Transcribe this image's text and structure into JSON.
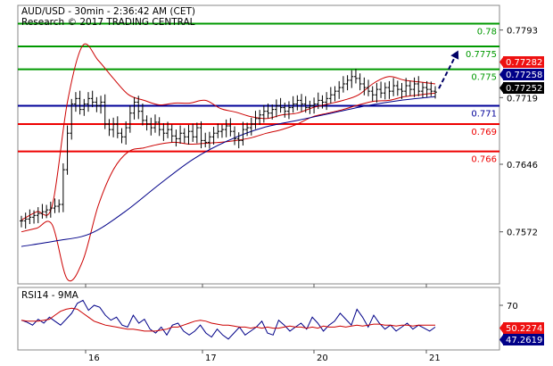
{
  "header": {
    "line1": "AUD/USD - 30min - 2:36:42 AM (CET)",
    "line2": "Research © 2017 TRADING CENTRAL"
  },
  "colors": {
    "resistance": "#009900",
    "support": "#ee0000",
    "pivot": "#000099",
    "bollinger": "#cc0000",
    "ma": "#000088",
    "price": "#000000",
    "rsi": "#000088",
    "rsi_ma": "#cc0000",
    "arrow": "#000066",
    "badge_red": "#ee1111",
    "badge_blue": "#000088"
  },
  "chart_data": [
    {
      "type": "line",
      "subtype": "ohlc",
      "ylim": [
        0.7515,
        0.782
      ],
      "y_ticks": [
        "0.7793",
        "0.7719",
        "0.7646",
        "0.7572"
      ],
      "x_ticks": [
        "16",
        "17",
        "20",
        "21"
      ],
      "levels": [
        {
          "value": 0.78,
          "label": "0.78",
          "kind": "resistance"
        },
        {
          "value": 0.7775,
          "label": "0.7775",
          "kind": "resistance"
        },
        {
          "value": 0.775,
          "label": "0.775",
          "kind": "resistance"
        },
        {
          "value": 0.771,
          "label": "0.771",
          "kind": "pivot"
        },
        {
          "value": 0.769,
          "label": "0.769",
          "kind": "support"
        },
        {
          "value": 0.766,
          "label": "0.766",
          "kind": "support"
        }
      ],
      "badges": [
        {
          "label": "0.77282",
          "value": 0.77282,
          "color": "red"
        },
        {
          "label": "0.77258",
          "value": 0.77258,
          "color": "blue"
        },
        {
          "label": "0.77252",
          "value": 0.77252,
          "color": "black"
        }
      ],
      "series_close": [
        0.7584,
        0.7586,
        0.7588,
        0.759,
        0.7592,
        0.7594,
        0.7596,
        0.7598,
        0.76,
        0.7602,
        0.764,
        0.768,
        0.7712,
        0.7718,
        0.7706,
        0.7712,
        0.7718,
        0.7714,
        0.771,
        0.7714,
        0.769,
        0.7684,
        0.769,
        0.768,
        0.7676,
        0.7686,
        0.7702,
        0.7714,
        0.7704,
        0.7694,
        0.769,
        0.7686,
        0.7692,
        0.7684,
        0.768,
        0.7684,
        0.7677,
        0.7674,
        0.768,
        0.7676,
        0.7682,
        0.7676,
        0.7686,
        0.7672,
        0.767,
        0.7676,
        0.768,
        0.7682,
        0.7684,
        0.7688,
        0.7682,
        0.7674,
        0.7672,
        0.7684,
        0.7686,
        0.769,
        0.7696,
        0.77,
        0.7704,
        0.7702,
        0.7706,
        0.771,
        0.7708,
        0.7704,
        0.7708,
        0.7712,
        0.7716,
        0.7712,
        0.7708,
        0.771,
        0.7712,
        0.7716,
        0.7714,
        0.7718,
        0.7722,
        0.7726,
        0.773,
        0.7734,
        0.7738,
        0.7742,
        0.774,
        0.7734,
        0.773,
        0.7726,
        0.7722,
        0.7728,
        0.7724,
        0.773,
        0.7726,
        0.7732,
        0.7728,
        0.7726,
        0.7732,
        0.7728,
        0.7734,
        0.7726,
        0.773,
        0.7728,
        0.7726,
        0.7725
      ],
      "ma_values": [
        0.7556,
        0.7562,
        0.757,
        0.7594,
        0.7624,
        0.7652,
        0.7672,
        0.7686,
        0.7694,
        0.7702,
        0.771,
        0.7716,
        0.772
      ],
      "boll_upper": [
        0.7585,
        0.7594,
        0.76,
        0.7714,
        0.7776,
        0.776,
        0.774,
        0.7722,
        0.7716,
        0.7711,
        0.7713,
        0.7713,
        0.7716,
        0.7707,
        0.7703,
        0.7698,
        0.7696,
        0.77,
        0.7702,
        0.7708,
        0.7712,
        0.7716,
        0.7722,
        0.7735,
        0.7742,
        0.7738,
        0.7736,
        0.7734
      ],
      "boll_lower": [
        0.7572,
        0.7576,
        0.758,
        0.752,
        0.754,
        0.76,
        0.764,
        0.766,
        0.7664,
        0.7668,
        0.767,
        0.7668,
        0.7669,
        0.767,
        0.7672,
        0.7675,
        0.768,
        0.7684,
        0.769,
        0.7698,
        0.7702,
        0.7706,
        0.7711,
        0.7715,
        0.7716,
        0.772,
        0.7722,
        0.7724
      ]
    },
    {
      "type": "line",
      "title": "RSI14 - 9MA",
      "ylim": [
        25,
        88
      ],
      "y_ticks": [
        "70"
      ],
      "x_ticks": [
        "16",
        "17",
        "20",
        "21"
      ],
      "badges": [
        {
          "label": "50.2274",
          "value": 50.2274,
          "color": "red"
        },
        {
          "label": "47.2619",
          "value": 47.2619,
          "color": "blue"
        }
      ],
      "series": [
        {
          "key": "rsi",
          "values": [
            55,
            53,
            50,
            56,
            52,
            58,
            54,
            50,
            56,
            62,
            72,
            75,
            65,
            70,
            68,
            60,
            55,
            58,
            50,
            48,
            60,
            52,
            56,
            46,
            42,
            48,
            40,
            50,
            52,
            44,
            40,
            44,
            50,
            42,
            38,
            46,
            40,
            36,
            42,
            48,
            40,
            44,
            48,
            54,
            42,
            40,
            55,
            50,
            44,
            48,
            52,
            46,
            58,
            52,
            44,
            50,
            54,
            62,
            56,
            50,
            66,
            58,
            48,
            60,
            52,
            46,
            50,
            44,
            48,
            52,
            46,
            50,
            47,
            44,
            48
          ]
        },
        {
          "key": "rsi_ma",
          "values": [
            55,
            54,
            54,
            54,
            55,
            56,
            60,
            64,
            66,
            67,
            66,
            62,
            58,
            54,
            52,
            50,
            49,
            48,
            47,
            46,
            46,
            45,
            44,
            44,
            44,
            45,
            46,
            48,
            48,
            50,
            52,
            54,
            55,
            54,
            52,
            51,
            50,
            50,
            49,
            48,
            48,
            47,
            48,
            47,
            48,
            47,
            47,
            48,
            49,
            48,
            48,
            47,
            48,
            47,
            49,
            48,
            48,
            49,
            48,
            49,
            50,
            49,
            50,
            51,
            51,
            50,
            50,
            49,
            50,
            50,
            49,
            50,
            50,
            50,
            50
          ]
        }
      ]
    }
  ]
}
